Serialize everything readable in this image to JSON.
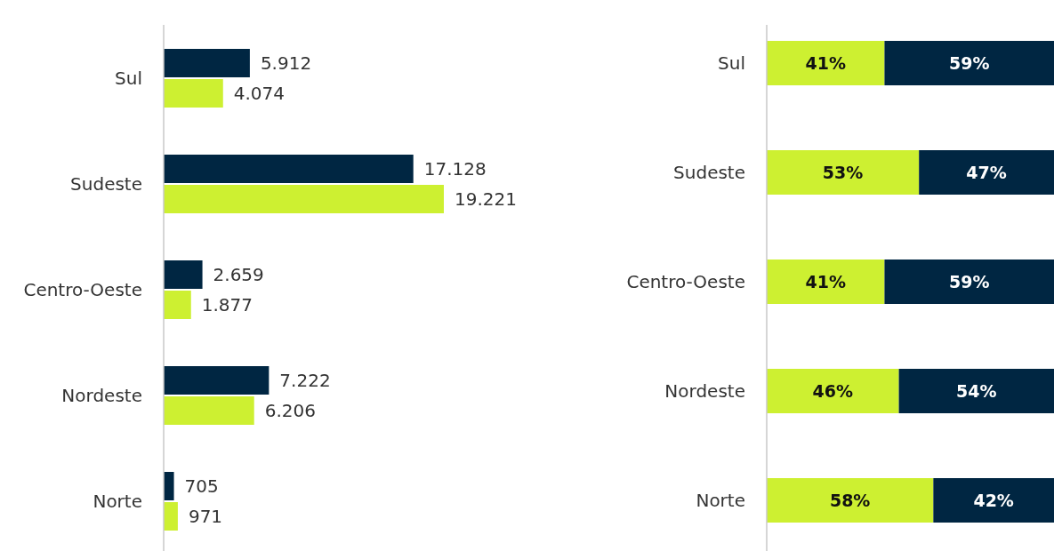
{
  "chart_data": [
    {
      "type": "bar",
      "orientation": "horizontal",
      "categories": [
        "Sul",
        "Sudeste",
        "Centro-Oeste",
        "Nordeste",
        "Norte"
      ],
      "series": [
        {
          "color": "#002642",
          "values": [
            5912,
            17128,
            2659,
            7222,
            705
          ],
          "value_labels": [
            "5.912",
            "17.128",
            "2.659",
            "7.222",
            "705"
          ]
        },
        {
          "color": "#cdf031",
          "values": [
            4074,
            19221,
            1877,
            6206,
            971
          ],
          "value_labels": [
            "4.074",
            "19.221",
            "1.877",
            "6.206",
            "971"
          ]
        }
      ]
    },
    {
      "type": "bar",
      "orientation": "horizontal",
      "stacked": true,
      "categories": [
        "Sul",
        "Sudeste",
        "Centro-Oeste",
        "Nordeste",
        "Norte"
      ],
      "series": [
        {
          "color": "#cdf031",
          "values": [
            41,
            53,
            41,
            46,
            58
          ],
          "value_labels": [
            "41%",
            "53%",
            "41%",
            "46%",
            "58%"
          ]
        },
        {
          "color": "#002642",
          "values": [
            59,
            47,
            59,
            54,
            42
          ],
          "value_labels": [
            "59%",
            "47%",
            "59%",
            "54%",
            "42%"
          ]
        }
      ]
    }
  ]
}
